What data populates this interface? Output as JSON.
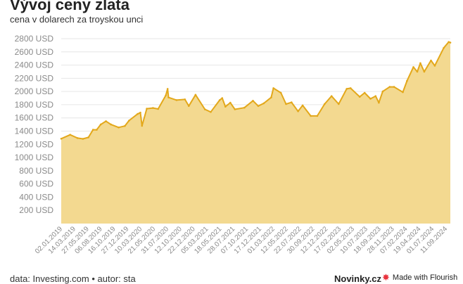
{
  "header": {
    "title": "Vývoj ceny zlata",
    "subtitle": "cena v dolarech za troyskou unci"
  },
  "footer": {
    "source_label": "data: Investing.com",
    "separator": "•",
    "author_label": "autor: sta",
    "brand": "Novinky.cz",
    "flourish_label": "Made with Flourish",
    "flourish_icon": "flourish-star-icon"
  },
  "colors": {
    "line": "#e3a81b",
    "area": "#f3d990",
    "grid": "#e6e6e6",
    "axis_text": "#8a8a8a",
    "flourish_icon": "#e8333e"
  },
  "chart_data": {
    "type": "area",
    "title": "Vývoj ceny zlata",
    "subtitle": "cena v dolarech za troyskou unci",
    "xlabel": "",
    "ylabel": "",
    "ylim": [
      0,
      2800
    ],
    "y_ticks": [
      200,
      400,
      600,
      800,
      1000,
      1200,
      1400,
      1600,
      1800,
      2000,
      2200,
      2400,
      2600,
      2800
    ],
    "y_tick_suffix": " USD",
    "x_range": [
      "2019-01-02",
      "2024-10-31"
    ],
    "x_tick_labels": [
      "02.01.2019",
      "14.03.2019",
      "27.05.2019",
      "06.08.2019",
      "16.10.2019",
      "27.12.2019",
      "10.03.2020",
      "21.05.2020",
      "31.07.2020",
      "12.10.2020",
      "22.12.2020",
      "05.03.2021",
      "18.05.2021",
      "28.07.2021",
      "07.10.2021",
      "17.12.2021",
      "01.03.2022",
      "12.05.2022",
      "22.07.2022",
      "30.09.2022",
      "12.12.2022",
      "17.02.2023",
      "02.05.2023",
      "10.07.2023",
      "18.09.2023",
      "28.11.2023",
      "07.02.2024",
      "19.04.2024",
      "01.07.2024",
      "11.09.2024"
    ],
    "grid": true,
    "legend": "none",
    "series": [
      {
        "x": [
          "2019-01-02",
          "2019-02-20",
          "2019-04-01",
          "2019-05-01",
          "2019-05-31",
          "2019-06-25",
          "2019-07-15",
          "2019-08-06",
          "2019-09-04",
          "2019-10-01",
          "2019-11-12",
          "2019-12-16",
          "2020-01-08",
          "2020-02-24",
          "2020-03-10",
          "2020-03-19",
          "2020-04-14",
          "2020-05-18",
          "2020-06-15",
          "2020-07-27",
          "2020-08-06",
          "2020-08-11",
          "2020-09-24",
          "2020-11-09",
          "2020-11-30",
          "2021-01-06",
          "2021-02-26",
          "2021-03-30",
          "2021-05-18",
          "2021-06-01",
          "2021-06-18",
          "2021-07-15",
          "2021-08-09",
          "2021-09-30",
          "2021-11-16",
          "2021-12-15",
          "2022-01-14",
          "2022-02-24",
          "2022-03-08",
          "2022-04-18",
          "2022-05-16",
          "2022-06-15",
          "2022-07-21",
          "2022-08-15",
          "2022-09-28",
          "2022-11-03",
          "2022-12-13",
          "2023-01-20",
          "2023-02-28",
          "2023-04-13",
          "2023-05-04",
          "2023-06-23",
          "2023-07-20",
          "2023-08-21",
          "2023-09-18",
          "2023-10-06",
          "2023-10-27",
          "2023-12-04",
          "2023-12-28",
          "2024-02-14",
          "2024-03-08",
          "2024-04-12",
          "2024-05-03",
          "2024-05-20",
          "2024-06-10",
          "2024-07-17",
          "2024-08-07",
          "2024-09-25",
          "2024-10-22",
          "2024-10-31"
        ],
        "values": [
          1285,
          1345,
          1295,
          1283,
          1305,
          1420,
          1420,
          1500,
          1550,
          1500,
          1455,
          1478,
          1560,
          1660,
          1680,
          1480,
          1740,
          1750,
          1735,
          1940,
          2040,
          1910,
          1870,
          1880,
          1780,
          1950,
          1730,
          1690,
          1870,
          1900,
          1770,
          1830,
          1730,
          1755,
          1860,
          1780,
          1820,
          1910,
          2050,
          1980,
          1810,
          1835,
          1700,
          1790,
          1630,
          1630,
          1810,
          1930,
          1810,
          2040,
          2050,
          1920,
          1980,
          1890,
          1930,
          1830,
          2000,
          2070,
          2070,
          1990,
          2160,
          2370,
          2300,
          2430,
          2300,
          2470,
          2390,
          2660,
          2750,
          2740
        ]
      }
    ]
  }
}
